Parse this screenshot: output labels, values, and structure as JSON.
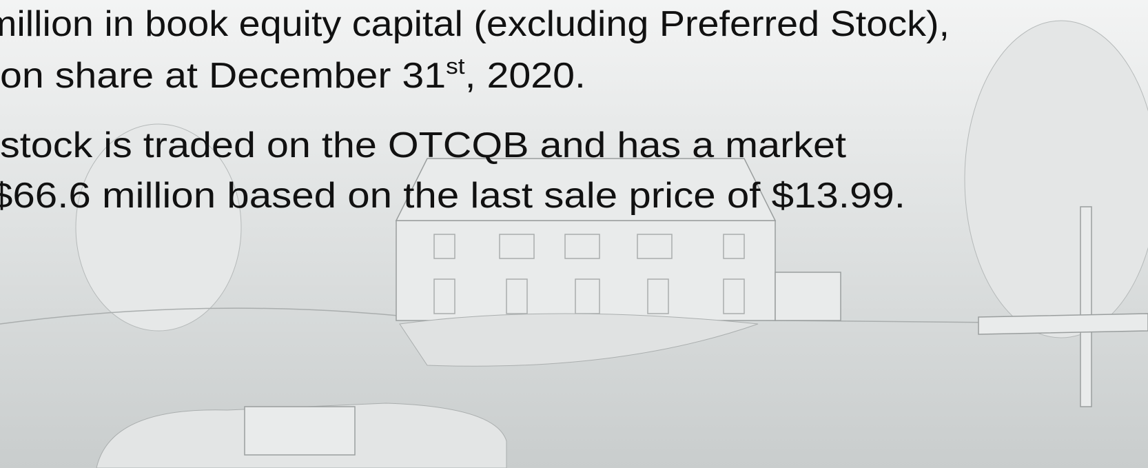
{
  "paragraphs": [
    {
      "lines": [
        {
          "text": "million in book equity capital (excluding Preferred Stock),"
        },
        {
          "text": "on share at December 31",
          "sup": "st",
          "after": ", 2020."
        }
      ]
    },
    {
      "lines": [
        {
          "text": "stock is traded on the OTCQB and has a market"
        },
        {
          "text": "$66.6 million based on the last sale price of $13.99."
        }
      ]
    }
  ]
}
